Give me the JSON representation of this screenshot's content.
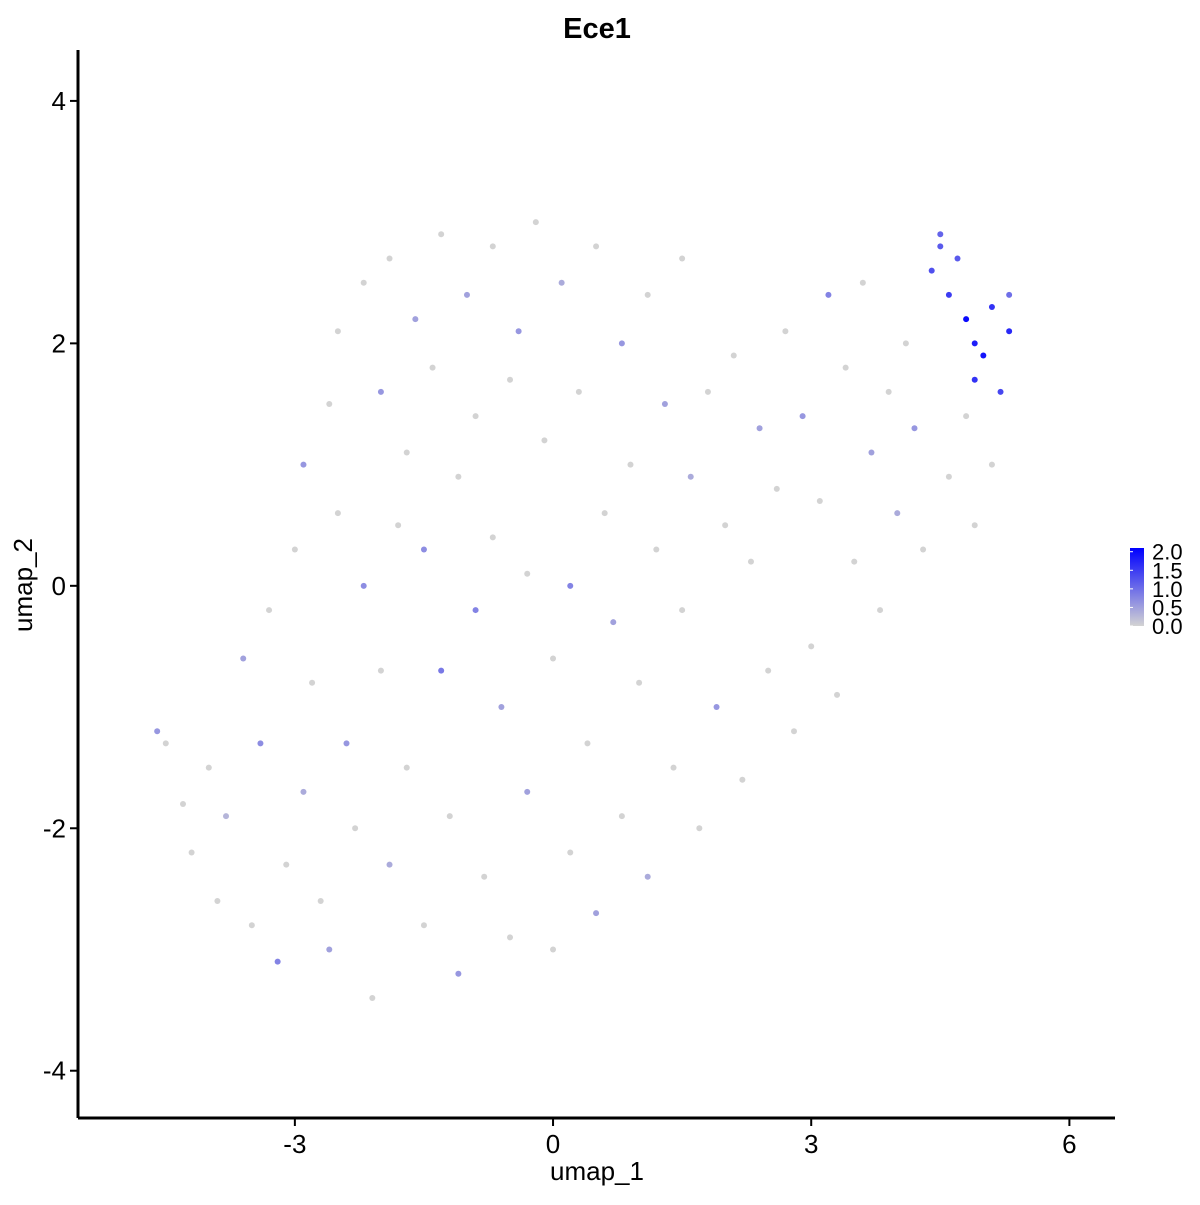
{
  "chart_data": {
    "type": "scatter",
    "title": "Ece1",
    "x_label": "umap_1",
    "y_label": "umap_2",
    "x": [
      -4.6,
      -4.5,
      -4.3,
      -4.2,
      -4.0,
      -3.9,
      -3.8,
      -3.6,
      -3.5,
      -3.4,
      -3.3,
      -3.2,
      -3.1,
      -3.0,
      -2.9,
      -2.9,
      -2.8,
      -2.7,
      -2.6,
      -2.6,
      -2.5,
      -2.5,
      -2.4,
      -2.3,
      -2.2,
      -2.2,
      -2.1,
      -2.0,
      -2.0,
      -1.9,
      -1.9,
      -1.8,
      -1.7,
      -1.7,
      -1.6,
      -1.5,
      -1.5,
      -1.4,
      -1.3,
      -1.3,
      -1.2,
      -1.1,
      -1.1,
      -1.0,
      -0.9,
      -0.9,
      -0.8,
      -0.7,
      -0.7,
      -0.6,
      -0.5,
      -0.5,
      -0.4,
      -0.3,
      -0.3,
      -0.2,
      -0.1,
      0.0,
      0.0,
      0.1,
      0.2,
      0.2,
      0.3,
      0.4,
      0.5,
      0.5,
      0.6,
      0.7,
      0.8,
      0.8,
      0.9,
      1.0,
      1.1,
      1.1,
      1.2,
      1.3,
      1.4,
      1.5,
      1.5,
      1.6,
      1.7,
      1.8,
      1.9,
      2.0,
      2.1,
      2.2,
      2.3,
      2.4,
      2.5,
      2.6,
      2.7,
      2.8,
      2.9,
      3.0,
      3.1,
      3.2,
      3.3,
      3.4,
      3.5,
      3.6,
      3.7,
      3.8,
      3.9,
      4.0,
      4.1,
      4.2,
      4.3,
      4.4,
      4.5,
      4.6,
      4.6,
      4.7,
      4.8,
      4.8,
      4.9,
      4.9,
      5.0,
      5.1,
      5.1,
      5.2,
      5.3,
      5.3,
      4.9,
      4.5
    ],
    "y": [
      -1.2,
      -1.3,
      -1.8,
      -2.2,
      -1.5,
      -2.6,
      -1.9,
      -0.6,
      -2.8,
      -1.3,
      -0.2,
      -3.1,
      -2.3,
      0.3,
      -1.7,
      1.0,
      -0.8,
      -2.6,
      1.5,
      -3.0,
      0.6,
      2.1,
      -1.3,
      -2.0,
      2.5,
      0.0,
      -3.4,
      1.6,
      -0.7,
      2.7,
      -2.3,
      0.5,
      1.1,
      -1.5,
      2.2,
      -2.8,
      0.3,
      1.8,
      -0.7,
      2.9,
      -1.9,
      0.9,
      -3.2,
      2.4,
      -0.2,
      1.4,
      -2.4,
      2.8,
      0.4,
      -1.0,
      1.7,
      -2.9,
      2.1,
      0.1,
      -1.7,
      3.0,
      1.2,
      -0.6,
      -3.0,
      2.5,
      0.0,
      -2.2,
      1.6,
      -1.3,
      2.8,
      -2.7,
      0.6,
      -0.3,
      2.0,
      -1.9,
      1.0,
      -0.8,
      2.4,
      -2.4,
      0.3,
      1.5,
      -1.5,
      2.7,
      -0.2,
      0.9,
      -2.0,
      1.6,
      -1.0,
      0.5,
      1.9,
      -1.6,
      0.2,
      1.3,
      -0.7,
      0.8,
      2.1,
      -1.2,
      1.4,
      -0.5,
      0.7,
      2.4,
      -0.9,
      1.8,
      0.2,
      2.5,
      1.1,
      -0.2,
      1.6,
      0.6,
      2.0,
      1.3,
      0.3,
      2.6,
      2.9,
      0.9,
      2.4,
      2.7,
      2.2,
      1.4,
      2.0,
      0.5,
      1.9,
      2.3,
      1.0,
      1.6,
      2.4,
      2.1,
      1.7,
      2.8
    ],
    "values": [
      0.6,
      0,
      0,
      0,
      0,
      0,
      0.3,
      0.5,
      0,
      0.7,
      0,
      0.8,
      0,
      0,
      0.4,
      0.6,
      0,
      0,
      0,
      0.5,
      0,
      0,
      0.6,
      0,
      0,
      0.7,
      0,
      0.6,
      0,
      0,
      0.4,
      0,
      0,
      0,
      0.5,
      0,
      0.7,
      0,
      0.9,
      0,
      0,
      0,
      0.6,
      0.5,
      0.8,
      0,
      0,
      0,
      0,
      0.5,
      0,
      0,
      0.6,
      0,
      0.5,
      0,
      0,
      0,
      0,
      0.4,
      0.8,
      0,
      0,
      0,
      0,
      0.5,
      0,
      0.5,
      0.6,
      0,
      0,
      0,
      0,
      0.4,
      0,
      0.5,
      0,
      0,
      0,
      0.4,
      0,
      0,
      0.6,
      0,
      0,
      0,
      0,
      0.5,
      0,
      0,
      0,
      0,
      0.6,
      0,
      0,
      0.8,
      0,
      0,
      0,
      0,
      0.5,
      0,
      0,
      0.4,
      0,
      0.6,
      0,
      1.3,
      1.1,
      0,
      1.5,
      1.2,
      2.0,
      0,
      1.8,
      0,
      1.9,
      1.6,
      0,
      1.4,
      1.0,
      1.7,
      1.6,
      1.2
    ],
    "xlim": [
      -5.52,
      6.53
    ],
    "ylim": [
      -4.39,
      4.42
    ],
    "xticks": [
      -3,
      0,
      3,
      6
    ],
    "yticks": [
      -4,
      -2,
      0,
      2,
      4
    ],
    "colorbar": {
      "low_color": "#d3d3d3",
      "high_color": "#0000ff",
      "lim": [
        0,
        2.1
      ],
      "ticks": [
        {
          "value": 0,
          "label": "0.0"
        },
        {
          "value": 0.5,
          "label": "0.5"
        },
        {
          "value": 1,
          "label": "1.0"
        },
        {
          "value": 1.5,
          "label": "1.5"
        },
        {
          "value": 2,
          "label": "2.0"
        }
      ]
    }
  }
}
